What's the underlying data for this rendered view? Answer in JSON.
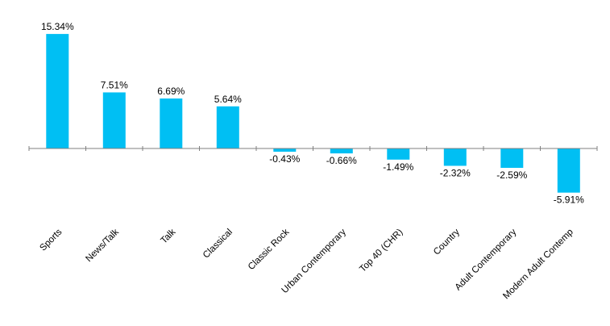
{
  "chart_data": {
    "type": "bar",
    "categories": [
      "Sports",
      "News/Talk",
      "Talk",
      "Classical",
      "Classic Rock",
      "Urban Contemporary",
      "Top 40 (CHR)",
      "Country",
      "Adult Contemporary",
      "Modern Adult Contemp"
    ],
    "values": [
      15.34,
      7.51,
      6.69,
      5.64,
      -0.43,
      -0.66,
      -1.49,
      -2.32,
      -2.59,
      -5.91
    ],
    "value_labels": [
      "15.34%",
      "7.51%",
      "6.69%",
      "5.64%",
      "-0.43%",
      "-0.66%",
      "-1.49%",
      "-2.32%",
      "-2.59%",
      "-5.91%"
    ],
    "title": "",
    "xlabel": "",
    "ylabel": "",
    "ylim": [
      -7.5,
      17.0
    ],
    "grid": false,
    "legend": "none",
    "bar_color": "#00BFF3"
  }
}
